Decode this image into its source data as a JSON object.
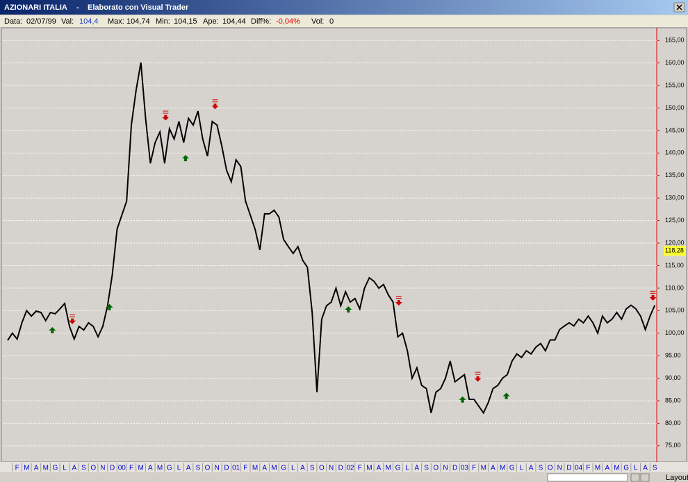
{
  "window": {
    "title": "AZIONARI ITALIA",
    "separator": "-",
    "subtitle": "Elaborato con Visual Trader",
    "info": [
      {
        "label": "Data:",
        "value": "02/07/99"
      },
      {
        "label": "Val:",
        "value": "104,4"
      },
      {
        "label": "Max:",
        "value": "104,74"
      },
      {
        "label": "Min:",
        "value": "104,15"
      },
      {
        "label": "Ape:",
        "value": "104,44"
      },
      {
        "label": "Diff%:",
        "value": "-0,04%"
      },
      {
        "label": "Vol:",
        "value": "0"
      }
    ],
    "layout_button": "Layout"
  },
  "chart_data": {
    "type": "line",
    "color": "#000000",
    "grid": true,
    "x": [
      0,
      0.5,
      1,
      1.5,
      2,
      2.5,
      3,
      3.5,
      4,
      4.5,
      5,
      5.5,
      6,
      6.5,
      7,
      7.5,
      8,
      8.5,
      9,
      9.5,
      10,
      10.5,
      11,
      11.5,
      12,
      12.5,
      13,
      13.5,
      14,
      14.5,
      15,
      15.5,
      16,
      16.5,
      17,
      17.5,
      18,
      18.5,
      19,
      19.5,
      20,
      20.5,
      21,
      21.5,
      22,
      22.5,
      23,
      23.5,
      24,
      24.5,
      25,
      25.5,
      26,
      26.5,
      27,
      27.5,
      28,
      28.5,
      29,
      29.5,
      30,
      30.5,
      31,
      31.5,
      32,
      32.5,
      33,
      33.5,
      34,
      34.5,
      35,
      35.5,
      36,
      36.5,
      37,
      37.5,
      38,
      38.5,
      39,
      39.5,
      40,
      40.5,
      41,
      41.5,
      42,
      42.5,
      43,
      43.5,
      44,
      44.5,
      45,
      45.5,
      46,
      46.5,
      47,
      47.5,
      48,
      48.5,
      49,
      49.5,
      50,
      50.5,
      51,
      51.5,
      52,
      52.5,
      53,
      53.5,
      54,
      54.5,
      55,
      55.5,
      56,
      56.5,
      57,
      57.5,
      58,
      58.5,
      59,
      59.5,
      60,
      60.5,
      61,
      61.5,
      62,
      62.5,
      63,
      63.5,
      64,
      64.5,
      65,
      65.5,
      66,
      66.5,
      67,
      67.5,
      68
    ],
    "values": [
      98.4,
      100,
      98.7,
      102.3,
      105,
      103.8,
      104.9,
      104.6,
      102.8,
      104.6,
      104.3,
      105.4,
      106.6,
      101.5,
      98.7,
      101.5,
      100.7,
      102.3,
      101.5,
      99.2,
      101.5,
      106.1,
      113,
      123.1,
      126.2,
      129.3,
      146.2,
      153.9,
      160.1,
      147.7,
      137.7,
      142.3,
      144.7,
      137.7,
      145.4,
      143.1,
      147,
      142.3,
      147.7,
      146.2,
      149.3,
      143.1,
      139.3,
      147,
      146.2,
      141.6,
      136.2,
      133.6,
      138.5,
      137,
      129.3,
      126.2,
      123.1,
      118.5,
      126.5,
      126.5,
      127.3,
      125.8,
      120.8,
      119.2,
      117.7,
      119.2,
      116.2,
      114.6,
      104.6,
      86.9,
      103.1,
      106.1,
      106.9,
      110,
      106.1,
      109.2,
      106.9,
      107.7,
      105.4,
      110,
      112.3,
      111.5,
      110,
      110.8,
      108.5,
      106.9,
      99.2,
      100,
      96.1,
      90,
      92.3,
      88.4,
      87.7,
      82.3,
      86.9,
      87.7,
      90,
      93.8,
      89.2,
      90,
      90.8,
      85.3,
      85.3,
      83.8,
      82.3,
      84.6,
      87.7,
      88.4,
      90,
      90.8,
      93.8,
      95.4,
      94.6,
      96.1,
      95.4,
      96.9,
      97.7,
      96.1,
      98.5,
      98.5,
      100.8,
      101.6,
      102.3,
      101.6,
      103.1,
      102.3,
      103.8,
      102.3,
      100,
      103.8,
      102.3,
      103.1,
      104.6,
      103.1,
      105.4,
      106.2,
      105.4,
      103.8,
      100.8,
      103.8,
      106.2
    ],
    "buy_signals": {
      "color": "#006600",
      "x": [
        4.7,
        10.7,
        18.7,
        35.8,
        47.8,
        52.4
      ],
      "values": [
        100.6,
        105.7,
        138.8,
        105.2,
        85.2,
        86
      ]
    },
    "sell_signals": {
      "color": "#cc0000",
      "x": [
        6.8,
        16.6,
        21.8,
        41.1,
        49.4,
        67.8
      ],
      "values": [
        102.8,
        148,
        150.5,
        106.9,
        90,
        108
      ]
    },
    "last_value": {
      "value": 118.28,
      "label": "118,28"
    },
    "xlim": [
      -0.8,
      68.2
    ],
    "ylim": [
      72.2,
      167.5
    ],
    "yticks": [
      {
        "value": 75,
        "label": "75,00"
      },
      {
        "value": 80,
        "label": "80,00"
      },
      {
        "value": 85,
        "label": "85,00"
      },
      {
        "value": 90,
        "label": "90,00"
      },
      {
        "value": 95,
        "label": "95,00"
      },
      {
        "value": 100,
        "label": "100,00"
      },
      {
        "value": 105,
        "label": "105,00"
      },
      {
        "value": 110,
        "label": "110,00"
      },
      {
        "value": 115,
        "label": "115,00"
      },
      {
        "value": 120,
        "label": "120,00"
      },
      {
        "value": 125,
        "label": "125,00"
      },
      {
        "value": 130,
        "label": "130,00"
      },
      {
        "value": 135,
        "label": "135,00"
      },
      {
        "value": 140,
        "label": "140,00"
      },
      {
        "value": 145,
        "label": "145,00"
      },
      {
        "value": 150,
        "label": "150,00"
      },
      {
        "value": 155,
        "label": "155,00"
      },
      {
        "value": 160,
        "label": "160,00"
      },
      {
        "value": 165,
        "label": "165,00"
      }
    ],
    "xticks": [
      {
        "value": 1,
        "label": "F"
      },
      {
        "value": 2,
        "label": "M"
      },
      {
        "value": 3,
        "label": "A"
      },
      {
        "value": 4,
        "label": "M"
      },
      {
        "value": 5,
        "label": "G"
      },
      {
        "value": 6,
        "label": "L"
      },
      {
        "value": 7,
        "label": "A"
      },
      {
        "value": 8,
        "label": "S"
      },
      {
        "value": 9,
        "label": "O"
      },
      {
        "value": 10,
        "label": "N"
      },
      {
        "value": 11,
        "label": "D"
      },
      {
        "value": 12,
        "label": "00"
      },
      {
        "value": 13,
        "label": "F"
      },
      {
        "value": 14,
        "label": "M"
      },
      {
        "value": 15,
        "label": "A"
      },
      {
        "value": 16,
        "label": "M"
      },
      {
        "value": 17,
        "label": "G"
      },
      {
        "value": 18,
        "label": "L"
      },
      {
        "value": 19,
        "label": "A"
      },
      {
        "value": 20,
        "label": "S"
      },
      {
        "value": 21,
        "label": "O"
      },
      {
        "value": 22,
        "label": "N"
      },
      {
        "value": 23,
        "label": "D"
      },
      {
        "value": 24,
        "label": "01"
      },
      {
        "value": 25,
        "label": "F"
      },
      {
        "value": 26,
        "label": "M"
      },
      {
        "value": 27,
        "label": "A"
      },
      {
        "value": 28,
        "label": "M"
      },
      {
        "value": 29,
        "label": "G"
      },
      {
        "value": 30,
        "label": "L"
      },
      {
        "value": 31,
        "label": "A"
      },
      {
        "value": 32,
        "label": "S"
      },
      {
        "value": 33,
        "label": "O"
      },
      {
        "value": 34,
        "label": "N"
      },
      {
        "value": 35,
        "label": "D"
      },
      {
        "value": 36,
        "label": "02"
      },
      {
        "value": 37,
        "label": "F"
      },
      {
        "value": 38,
        "label": "M"
      },
      {
        "value": 39,
        "label": "A"
      },
      {
        "value": 40,
        "label": "M"
      },
      {
        "value": 41,
        "label": "G"
      },
      {
        "value": 42,
        "label": "L"
      },
      {
        "value": 43,
        "label": "A"
      },
      {
        "value": 44,
        "label": "S"
      },
      {
        "value": 45,
        "label": "O"
      },
      {
        "value": 46,
        "label": "N"
      },
      {
        "value": 47,
        "label": "D"
      },
      {
        "value": 48,
        "label": "03"
      },
      {
        "value": 49,
        "label": "F"
      },
      {
        "value": 50,
        "label": "M"
      },
      {
        "value": 51,
        "label": "A"
      },
      {
        "value": 52,
        "label": "M"
      },
      {
        "value": 53,
        "label": "G"
      },
      {
        "value": 54,
        "label": "L"
      },
      {
        "value": 55,
        "label": "A"
      },
      {
        "value": 56,
        "label": "S"
      },
      {
        "value": 57,
        "label": "O"
      },
      {
        "value": 58,
        "label": "N"
      },
      {
        "value": 59,
        "label": "D"
      },
      {
        "value": 60,
        "label": "04"
      },
      {
        "value": 61,
        "label": "F"
      },
      {
        "value": 62,
        "label": "M"
      },
      {
        "value": 63,
        "label": "A"
      },
      {
        "value": 64,
        "label": "M"
      },
      {
        "value": 65,
        "label": "G"
      },
      {
        "value": 66,
        "label": "L"
      },
      {
        "value": 67,
        "label": "A"
      },
      {
        "value": 68,
        "label": "S"
      }
    ]
  }
}
